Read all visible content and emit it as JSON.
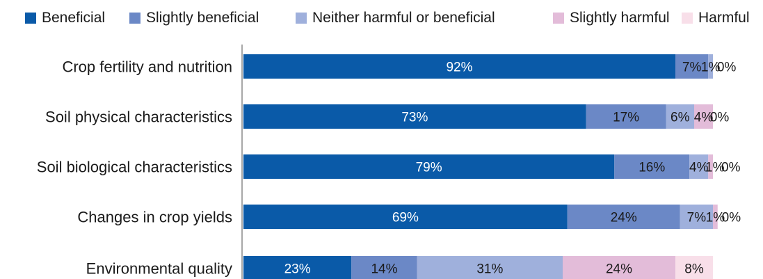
{
  "chart_data": {
    "type": "bar",
    "orientation": "horizontal",
    "stacked": true,
    "title": "",
    "xlabel": "",
    "ylabel": "",
    "xlim": [
      0,
      100
    ],
    "grid": false,
    "legend_position": "top",
    "categories": [
      "Crop fertility and nutrition",
      "Soil physical characteristics",
      "Soil biological characteristics",
      "Changes in crop yields",
      "Environmental quality"
    ],
    "series": [
      {
        "name": "Beneficial",
        "color": "#0a5aa8",
        "label_color": "#ffffff",
        "values": [
          92,
          73,
          79,
          69,
          23
        ]
      },
      {
        "name": "Slightly beneficial",
        "color": "#6b88c6",
        "label_color": "#1a1a1a",
        "values": [
          7,
          17,
          16,
          24,
          14
        ]
      },
      {
        "name": "Neither harmful or beneficial",
        "color": "#9fb0dc",
        "label_color": "#1a1a1a",
        "values": [
          1,
          6,
          4,
          7,
          31
        ]
      },
      {
        "name": "Slightly harmful",
        "color": "#e3bcd9",
        "label_color": "#1a1a1a",
        "values": [
          0,
          4,
          1,
          1,
          24
        ]
      },
      {
        "name": "Harmful",
        "color": "#f8dfe9",
        "label_color": "#1a1a1a",
        "values": [
          0,
          0,
          0,
          0,
          8
        ]
      }
    ],
    "value_labels": [
      [
        "92%",
        "7%",
        "1%",
        "0%",
        ""
      ],
      [
        "73%",
        "17%",
        "6%",
        "4%",
        "0%"
      ],
      [
        "79%",
        "16%",
        "4%",
        "1%",
        "0%"
      ],
      [
        "69%",
        "24%",
        "7%",
        "1%",
        "0%"
      ],
      [
        "23%",
        "14%",
        "31%",
        "24%",
        "8%"
      ]
    ]
  }
}
